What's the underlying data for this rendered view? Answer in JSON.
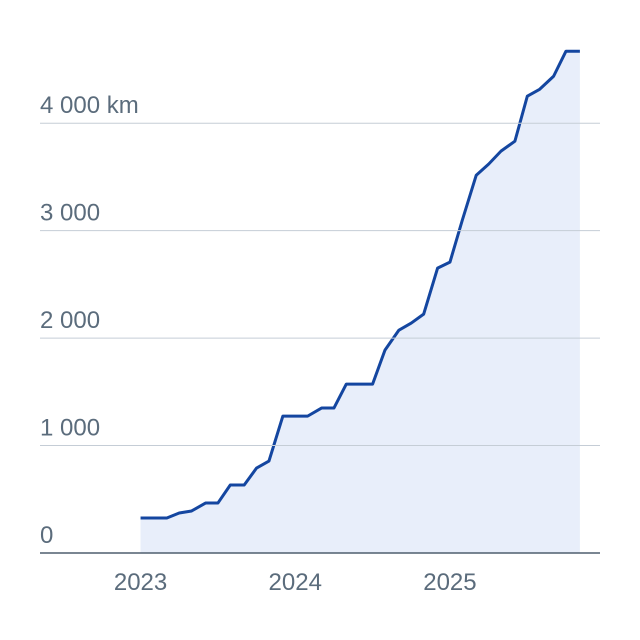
{
  "chart_data": {
    "type": "area",
    "x": [
      2023.0,
      2023.17,
      2023.25,
      2023.33,
      2023.42,
      2023.5,
      2023.58,
      2023.67,
      2023.75,
      2023.83,
      2023.92,
      2024.08,
      2024.17,
      2024.25,
      2024.33,
      2024.5,
      2024.58,
      2024.67,
      2024.75,
      2024.83,
      2024.92,
      2025.0,
      2025.08,
      2025.17,
      2025.25,
      2025.33,
      2025.42,
      2025.5,
      2025.58,
      2025.67,
      2025.75,
      2025.84
    ],
    "values": [
      326,
      326,
      372,
      391,
      465,
      465,
      633,
      633,
      791,
      856,
      1274,
      1274,
      1349,
      1349,
      1572,
      1572,
      1888,
      2074,
      2140,
      2223,
      2651,
      2707,
      3098,
      3516,
      3619,
      3740,
      3833,
      4251,
      4316,
      4437,
      4670,
      4670
    ],
    "color": "#1446a0",
    "fill": "#e8eefa",
    "xlim": [
      2022.35,
      2025.97
    ],
    "xticks": [
      2023,
      2024,
      2025
    ],
    "ylim": [
      0,
      4700
    ],
    "yticks": [
      0,
      {
        "value": 1000,
        "label": "1 000"
      },
      {
        "value": 2000,
        "label": "2 000"
      },
      {
        "value": 3000,
        "label": "3 000"
      },
      {
        "value": 4000,
        "label": "4 000 km"
      }
    ],
    "grid": true
  }
}
